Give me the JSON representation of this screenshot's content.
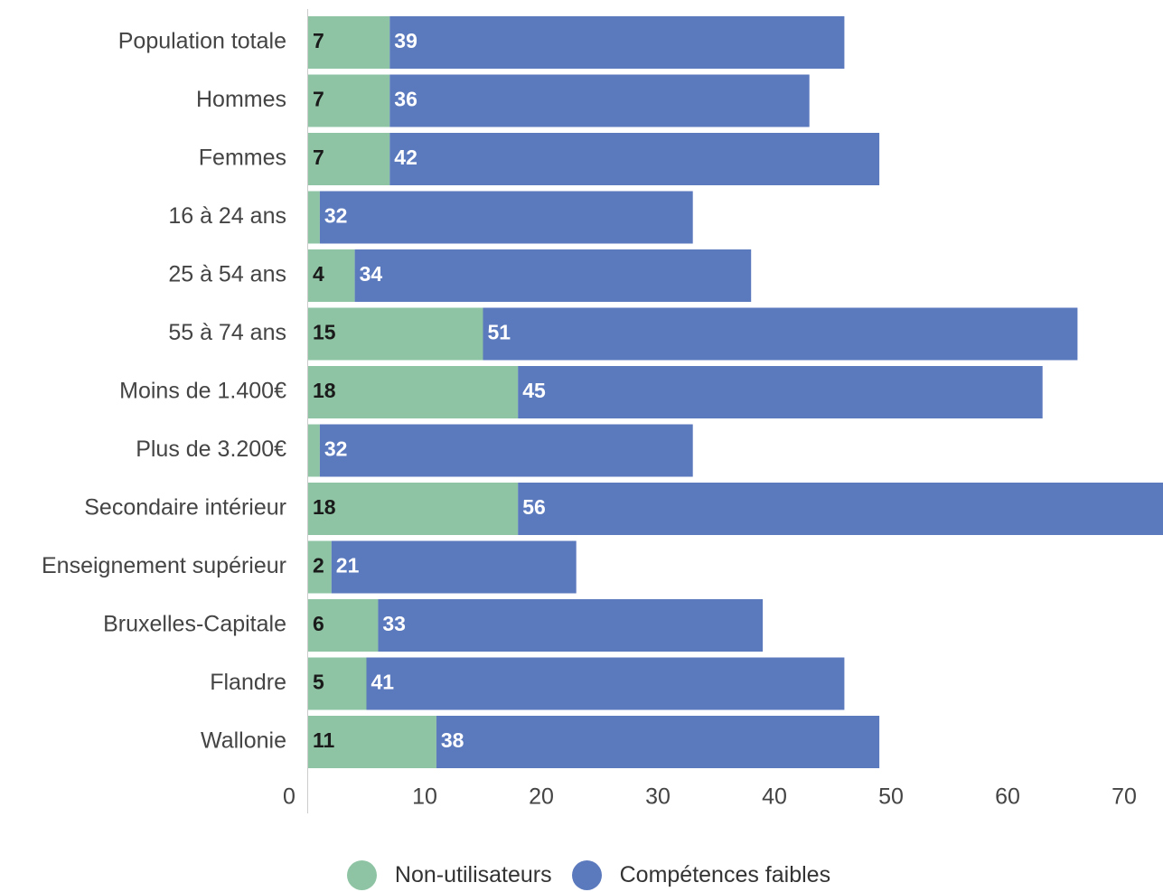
{
  "chart_data": {
    "type": "bar",
    "orientation": "horizontal",
    "stacked": true,
    "categories": [
      "Population totale",
      "Hommes",
      "Femmes",
      "16 à 24 ans",
      "25 à 54 ans",
      "55 à 74 ans",
      "Moins de 1.400€",
      "Plus de 3.200€",
      "Secondaire intérieur",
      "Enseignement supérieur",
      "Bruxelles-Capitale",
      "Flandre",
      "Wallonie"
    ],
    "series": [
      {
        "name": "Non-utilisateurs",
        "color": "#8ec4a4",
        "values": [
          7,
          7,
          7,
          1,
          4,
          15,
          18,
          1,
          18,
          2,
          6,
          5,
          11
        ],
        "labels": [
          "7",
          "7",
          "7",
          "",
          "4",
          "15",
          "18",
          "",
          "18",
          "2",
          "6",
          "5",
          "11"
        ]
      },
      {
        "name": "Compétences faibles",
        "color": "#5b79bd",
        "values": [
          39,
          36,
          42,
          32,
          34,
          51,
          45,
          32,
          56,
          21,
          33,
          41,
          38
        ],
        "labels": [
          "39",
          "36",
          "42",
          "32",
          "34",
          "51",
          "45",
          "32",
          "56",
          "21",
          "33",
          "41",
          "38"
        ]
      }
    ],
    "xticks": [
      "0",
      "10",
      "20",
      "30",
      "40",
      "50",
      "60",
      "70"
    ],
    "xlim": [
      0,
      73
    ],
    "legend_position": "bottom",
    "grid": false
  }
}
